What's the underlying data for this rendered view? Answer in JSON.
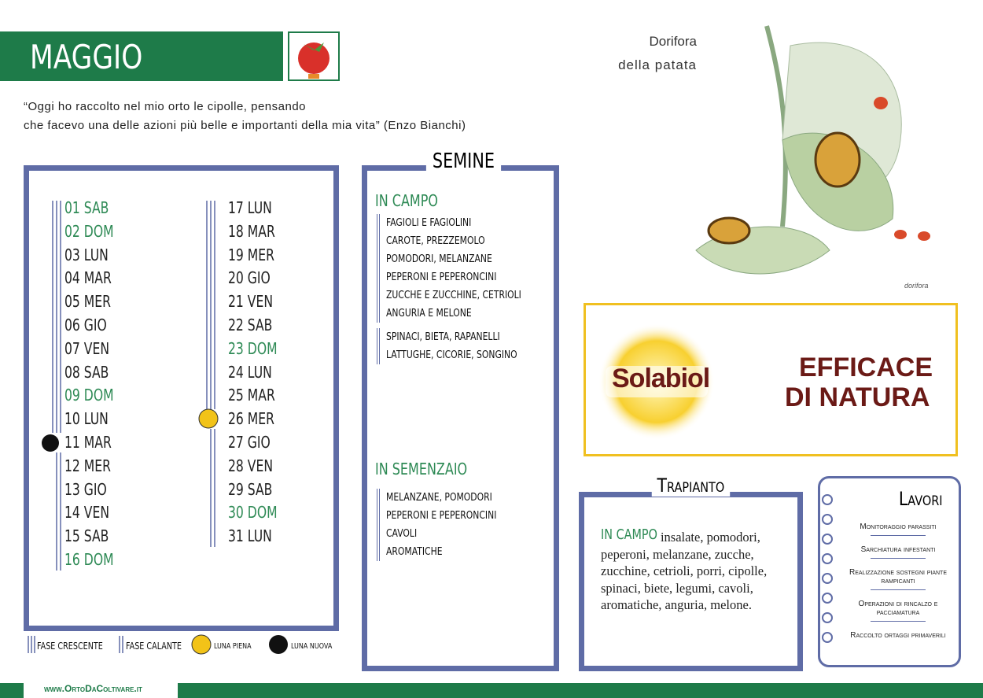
{
  "header": {
    "title": "MAGGIO",
    "quote_line1": "“Oggi ho raccolto nel mio orto le cipolle, pensando",
    "quote_line2": "che facevo una delle azioni più belle e importanti della mia vita” (Enzo Bianchi)"
  },
  "illustration": {
    "caption_line1": "Dorifora",
    "caption_line2": "della patata",
    "signature": "dorifora"
  },
  "calendar": {
    "days": [
      "01 SAB",
      "02 DOM",
      "03 LUN",
      "04 MAR",
      "05 MER",
      "06 GIO",
      "07 VEN",
      "08 SAB",
      "09 DOM",
      "10 LUN",
      "11 MAR",
      "12 MER",
      "13 GIO",
      "14 VEN",
      "15 SAB",
      "16 DOM",
      "17 LUN",
      "18 MAR",
      "19 MER",
      "20 GIO",
      "21 VEN",
      "22 SAB",
      "23 DOM",
      "24 LUN",
      "25 MAR",
      "26 MER",
      "27 GIO",
      "28 VEN",
      "29 SAB",
      "30 DOM",
      "31 LUN"
    ],
    "legend": [
      "FASE CRESCENTE",
      "FASE CALANTE",
      "LUNA PIENA",
      "LUNA NUOVA"
    ]
  },
  "semine": {
    "title": "SEMINE",
    "in_campo": {
      "title": "IN CAMPO",
      "group1": [
        "FAGIOLI E FAGIOLINI",
        "CAROTE, PREZZEMOLO",
        "POMODORI, MELANZANE",
        "PEPERONI E PEPERONCINI",
        "ZUCCHE E ZUCCHINE, CETRIOLI",
        "ANGURIA E MELONE"
      ],
      "group2": [
        "SPINACI, BIETA, RAPANELLI",
        "LATTUGHE, CICORIE, SONGINO"
      ]
    },
    "in_semenzaio": {
      "title": "IN SEMENZAIO",
      "items": [
        "MELANZANE, POMODORI",
        "PEPERONI E PEPERONCINI",
        "CAVOLI",
        "AROMATICHE"
      ]
    }
  },
  "ad": {
    "brand": "Solabiol",
    "slogan_line1": "EFFICACE",
    "slogan_line2": "DI NATURA"
  },
  "trapianto": {
    "title": "Trapianto",
    "label": "IN CAMPO",
    "lines": [
      "insalate, pomodori,",
      "peperoni, melanzane, zucche,",
      "zucchine, cetrioli, porri, cipolle,",
      "spinaci, biete, legumi, cavoli,",
      "aromatiche, anguria, melone."
    ]
  },
  "lavori": {
    "title": "Lavori",
    "items": [
      [
        "Monitoraggio parassiti"
      ],
      [
        "Sarchiatura infestanti"
      ],
      [
        "Realizzazione sostegni piante",
        "rampicanti"
      ],
      [
        "Operazioni di rincalzo e",
        "pacciamatura"
      ],
      [
        "Raccolto ortaggi primaverili"
      ]
    ]
  },
  "footer": {
    "url": "www.OrtoDaColtivare.it"
  }
}
